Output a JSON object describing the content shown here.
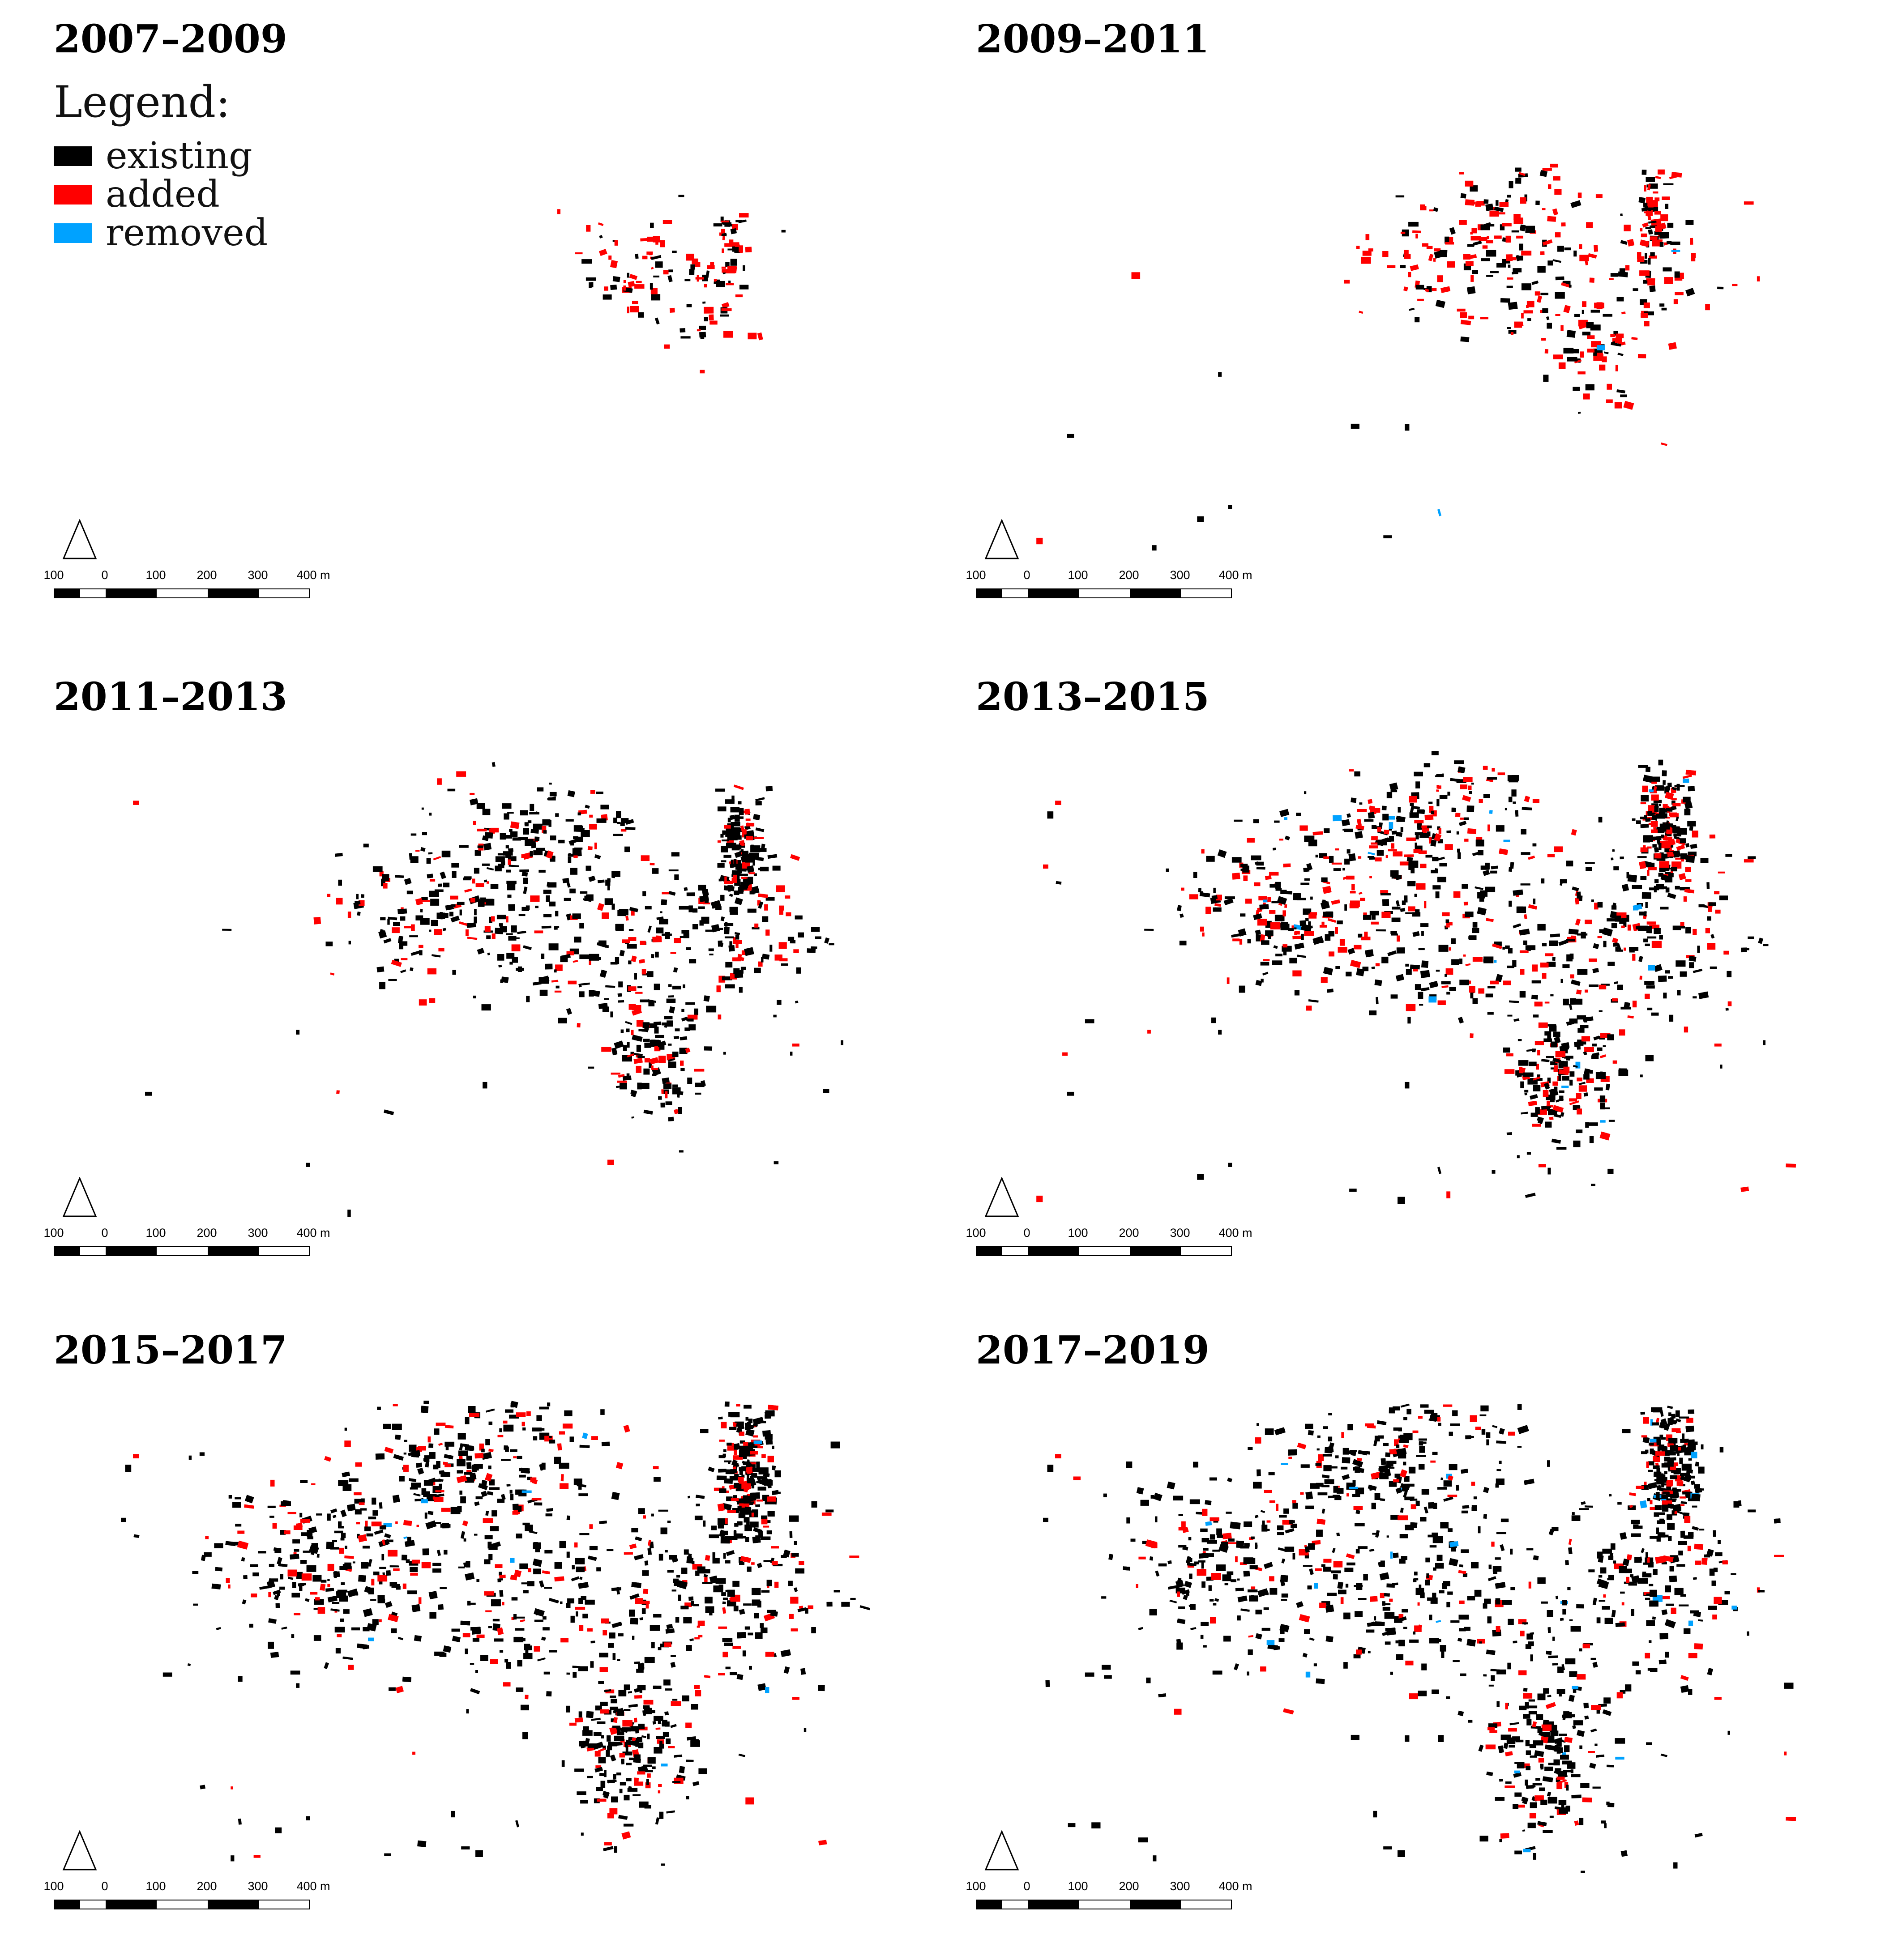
{
  "legend": {
    "title": "Legend:",
    "items": [
      {
        "label": "existing",
        "color": "#000000"
      },
      {
        "label": "added",
        "color": "#ff0000"
      },
      {
        "label": "removed",
        "color": "#00a2ff"
      }
    ]
  },
  "scale": {
    "ticks": [
      "100",
      "0",
      "100",
      "200",
      "300",
      "400 m"
    ],
    "north_symbol": "triangle"
  },
  "colors": {
    "existing": "#000000",
    "added": "#ff0000",
    "removed": "#00a2ff"
  },
  "panels": [
    {
      "title": "2007–2009"
    },
    {
      "title": "2009–2011"
    },
    {
      "title": "2011–2013"
    },
    {
      "title": "2013–2015"
    },
    {
      "title": "2015–2017"
    },
    {
      "title": "2017–2019"
    }
  ]
}
